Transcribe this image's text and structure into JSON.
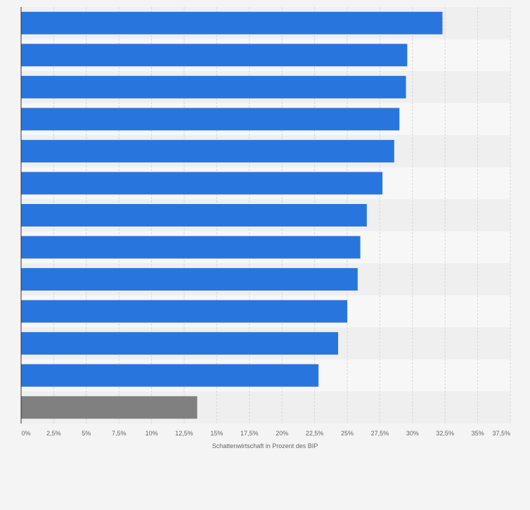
{
  "chart_data": {
    "type": "bar",
    "orientation": "horizontal",
    "categories": [
      "",
      "",
      "",
      "",
      "",
      "",
      "",
      "",
      "",
      "",
      "",
      "",
      ""
    ],
    "values": [
      32.3,
      29.6,
      29.5,
      29.0,
      28.6,
      27.7,
      26.5,
      26.0,
      25.8,
      25.0,
      24.3,
      22.8,
      13.5
    ],
    "highlight_index": 12,
    "xlabel": "Schattenwirtschaft in Prozent des BIP",
    "ylabel": "",
    "xlim": [
      0,
      37.5
    ],
    "ticks": [
      0,
      2.5,
      5,
      7.5,
      10,
      12.5,
      15,
      17.5,
      20,
      22.5,
      25,
      27.5,
      30,
      32.5,
      35,
      37.5
    ],
    "tick_labels": [
      "0%",
      "2,5%",
      "5%",
      "7,5%",
      "10%",
      "12,5%",
      "15%",
      "17,5%",
      "20%",
      "22,5%",
      "25%",
      "27,5%",
      "30%",
      "32,5%",
      "35%",
      "37,5%"
    ],
    "grid": true,
    "colors": {
      "bar": "#2876dd",
      "highlight": "#808080",
      "band_light": "#f7f7f7",
      "band_dark": "#efefef",
      "grid": "#d8d8d8",
      "axis": "#333333",
      "tick_text": "#666666"
    }
  }
}
